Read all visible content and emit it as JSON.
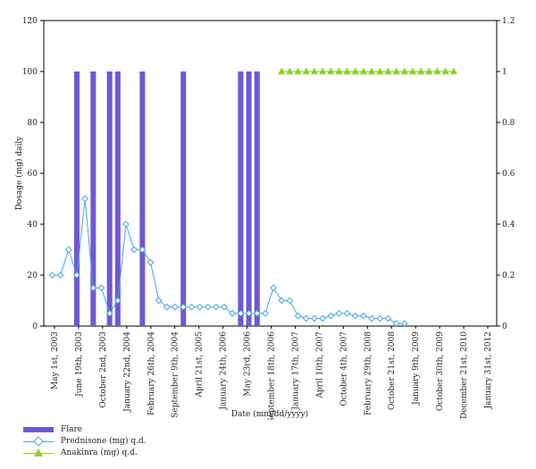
{
  "chart_data": {
    "type": "bar",
    "xlabel": "Date (mm/dd/yyyy)",
    "ylabel": "Dosage (mg) daily",
    "ylim": [
      0,
      120
    ],
    "y2lim": [
      0,
      1.2
    ],
    "yticks": [
      0,
      20,
      40,
      60,
      80,
      100,
      120
    ],
    "y2ticks": [
      "0",
      "0.2",
      "0.4",
      "0.6",
      "0.8",
      "1",
      "1.2"
    ],
    "x_tick_labels": [
      "May 1st, 2003",
      "June 19th, 2003",
      "October 2nd, 2003",
      "January 22nd, 2004",
      "February 26th, 2004",
      "September 9th, 2004",
      "April 21st, 2005",
      "January 24th, 2006",
      "May 23rd, 2006",
      "September 18th, 2006",
      "January 17th, 2007",
      "April 10th, 2007",
      "October 4th, 2007",
      "February 29th, 2008",
      "October 21st, 2008",
      "January 9th, 2009",
      "October 30th, 2009",
      "December 21st, 2010",
      "January 31st, 2012"
    ],
    "series": [
      {
        "name": "Flare",
        "kind": "bar",
        "axis": "right",
        "color": "#6f57d6",
        "x": [
          3,
          5,
          7,
          8,
          11,
          16,
          23,
          24,
          25
        ],
        "values": [
          1,
          1,
          1,
          1,
          1,
          1,
          1,
          1,
          1
        ]
      },
      {
        "name": "Prednisone (mg) q.d.",
        "kind": "line",
        "marker": "diamond",
        "axis": "left",
        "color": "#4aa3df",
        "x": [
          0,
          1,
          2,
          3,
          4,
          5,
          6,
          7,
          8,
          9,
          10,
          11,
          12,
          13,
          14,
          15,
          16,
          17,
          18,
          19,
          20,
          21,
          22,
          23,
          24,
          25,
          26,
          27,
          28,
          29,
          30,
          31,
          32,
          33,
          34,
          35,
          36,
          37,
          38,
          39,
          40,
          41,
          42,
          43
        ],
        "values": [
          20,
          20,
          30,
          20,
          50,
          15,
          15,
          5,
          10,
          40,
          30,
          30,
          25,
          10,
          7.5,
          7.5,
          7.5,
          7.5,
          7.5,
          7.5,
          7.5,
          7.5,
          5,
          5,
          5,
          5,
          5,
          15,
          10,
          10,
          4,
          3,
          3,
          3,
          4,
          5,
          5,
          4,
          4,
          3,
          3,
          3,
          1,
          1
        ]
      },
      {
        "name": "Anakinra (mg) q.d.",
        "kind": "line",
        "marker": "triangle",
        "axis": "right",
        "color": "#8fd12a",
        "x": [
          28,
          29,
          30,
          31,
          32,
          33,
          34,
          35,
          36,
          37,
          38,
          39,
          40,
          41,
          42,
          43,
          44,
          45,
          46,
          47,
          48,
          49
        ],
        "values": [
          1,
          1,
          1,
          1,
          1,
          1,
          1,
          1,
          1,
          1,
          1,
          1,
          1,
          1,
          1,
          1,
          1,
          1,
          1,
          1,
          1,
          1
        ]
      }
    ]
  },
  "legend": {
    "flare": "Flare",
    "prednisone": "Prednisone (mg) q.d.",
    "anakinra": "Anakinra (mg) q.d."
  }
}
